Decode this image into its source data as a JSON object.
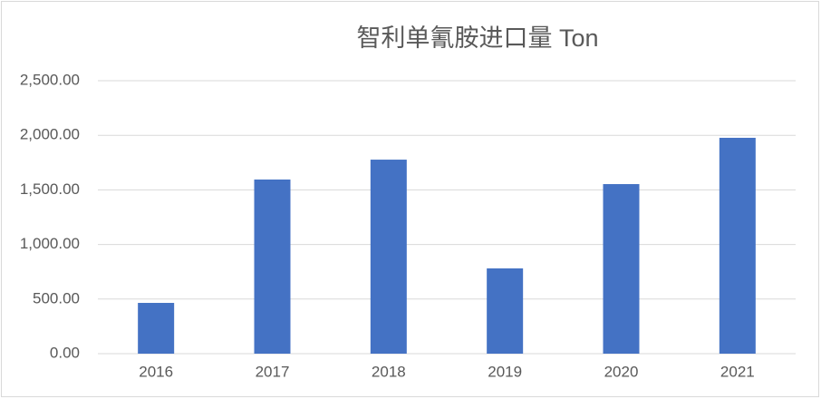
{
  "chart_data": {
    "type": "bar",
    "title": "智利单氰胺进口量 Ton",
    "categories": [
      "2016",
      "2017",
      "2018",
      "2019",
      "2020",
      "2021"
    ],
    "values": [
      465,
      1595,
      1777,
      781,
      1553,
      1977
    ],
    "color": "#4472c4",
    "ylim": [
      0,
      2500
    ],
    "yticks": [
      {
        "value": 0,
        "label": "0.00"
      },
      {
        "value": 500,
        "label": "500.00"
      },
      {
        "value": 1000,
        "label": "1,000.00"
      },
      {
        "value": 1500,
        "label": "1,500.00"
      },
      {
        "value": 2000,
        "label": "2,000.00"
      },
      {
        "value": 2500,
        "label": "2,500.00"
      }
    ],
    "grid": true
  }
}
